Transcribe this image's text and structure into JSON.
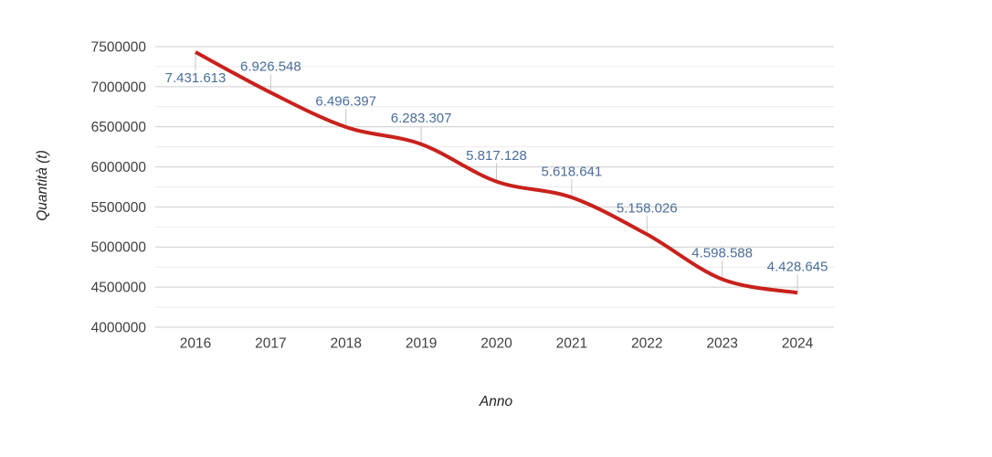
{
  "chart_data": {
    "type": "line",
    "title": "",
    "xlabel": "Anno",
    "ylabel": "Quantità (t)",
    "categories": [
      "2016",
      "2017",
      "2018",
      "2019",
      "2020",
      "2021",
      "2022",
      "2023",
      "2024"
    ],
    "series": [
      {
        "name": "Quantità (t)",
        "values": [
          7431613,
          6926548,
          6496397,
          6283307,
          5817128,
          5618641,
          5158026,
          4598588,
          4428645
        ]
      }
    ],
    "annotations": [
      {
        "text": "7.431.613",
        "side": "below"
      },
      {
        "text": "6.926.548",
        "side": "above"
      },
      {
        "text": "6.496.397",
        "side": "above"
      },
      {
        "text": "6.283.307",
        "side": "above"
      },
      {
        "text": "5.817.128",
        "side": "above"
      },
      {
        "text": "5.618.641",
        "side": "above"
      },
      {
        "text": "5.158.026",
        "side": "above"
      },
      {
        "text": "4.598.588",
        "side": "above"
      },
      {
        "text": "4.428.645",
        "side": "above"
      }
    ],
    "y_tick_labels": [
      "4000000",
      "4500000",
      "5000000",
      "5500000",
      "6000000",
      "6500000",
      "7000000",
      "7500000"
    ],
    "ylim": [
      4000000,
      7500000
    ],
    "y_major_step": 500000,
    "y_minor_step": 250000,
    "grid": true,
    "legend_position": "none",
    "smooth": true,
    "colors": {
      "line": "#c9211c",
      "annotation_text": "#4a6e9b",
      "annotation_stem": "#c6c6c6",
      "grid_major": "#cccccc",
      "grid_minor": "#ebebeb",
      "tick_text": "#404040",
      "axis_title_text": "#222222",
      "background": "#ffffff"
    }
  }
}
